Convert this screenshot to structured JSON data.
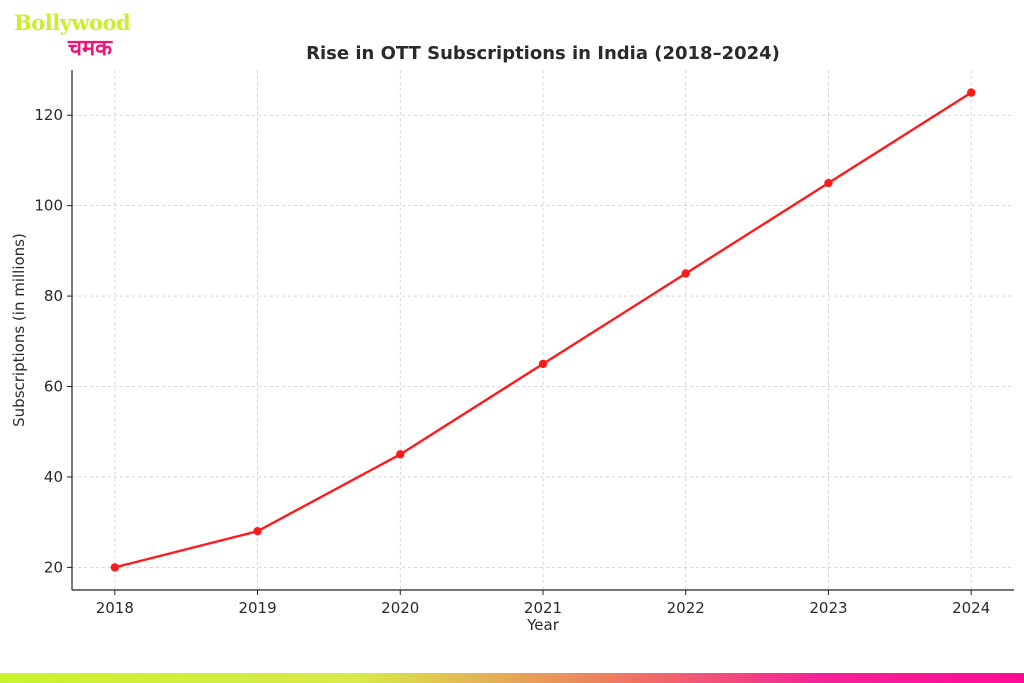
{
  "brand": {
    "name_latin": "Bollywood",
    "name_devanagari": "चमक",
    "primary_color": "#c9f02a",
    "accent_color": "#f0147a"
  },
  "chart_data": {
    "type": "line",
    "title": "Rise in OTT Subscriptions in India (2018–2024)",
    "xlabel": "Year",
    "ylabel": "Subscriptions (in millions)",
    "x": [
      2018,
      2019,
      2020,
      2021,
      2022,
      2023,
      2024
    ],
    "series": [
      {
        "values": [
          20,
          28,
          45,
          65,
          85,
          105,
          125
        ],
        "color": "#ff1a1a",
        "marker": "circle"
      }
    ],
    "yticks": [
      20,
      40,
      60,
      80,
      100,
      120
    ],
    "ylim": [
      15,
      130
    ],
    "xlim": [
      2017.7,
      2024.3
    ],
    "grid": true,
    "legend": "none"
  }
}
